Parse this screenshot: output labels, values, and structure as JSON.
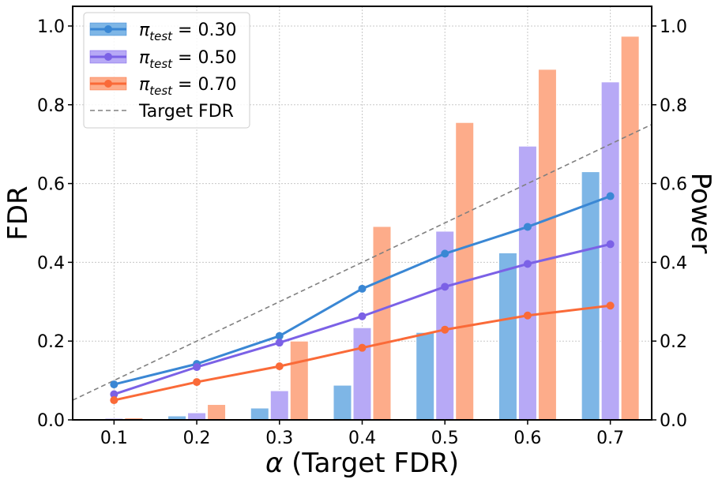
{
  "chart_data": {
    "type": "bar+line",
    "title": "",
    "xlabel_symbol": "α",
    "xlabel_text": " (Target FDR)",
    "ylabel_left": "FDR",
    "ylabel_right": "Power",
    "x": [
      0.1,
      0.2,
      0.3,
      0.4,
      0.5,
      0.6,
      0.7
    ],
    "x_tick_labels": [
      "0.1",
      "0.2",
      "0.3",
      "0.4",
      "0.5",
      "0.6",
      "0.7"
    ],
    "xlim": [
      0.05,
      0.75
    ],
    "ylim_left": [
      0,
      1.05
    ],
    "ylim_right": [
      0,
      1.05
    ],
    "y_ticks": [
      0.0,
      0.2,
      0.4,
      0.6,
      0.8,
      1.0
    ],
    "y_tick_labels": [
      "0.0",
      "0.2",
      "0.4",
      "0.6",
      "0.8",
      "1.0"
    ],
    "grid": true,
    "legend_position": "top-left",
    "series": [
      {
        "name_symbol": "π",
        "name_sub": "test",
        "name_value": " = 0.30",
        "color": "#3a87d4",
        "bar_color": "#7eb6e6",
        "fdr": [
          0.09,
          0.142,
          0.213,
          0.333,
          0.422,
          0.49,
          0.568
        ],
        "power": [
          0.003,
          0.01,
          0.03,
          0.088,
          0.222,
          0.424,
          0.63
        ]
      },
      {
        "name_symbol": "π",
        "name_sub": "test",
        "name_value": " = 0.50",
        "color": "#7b61e6",
        "bar_color": "#b7a9f6",
        "fdr": [
          0.065,
          0.134,
          0.196,
          0.263,
          0.338,
          0.396,
          0.446
        ],
        "power": [
          0.004,
          0.018,
          0.074,
          0.234,
          0.479,
          0.695,
          0.858
        ]
      },
      {
        "name_symbol": "π",
        "name_sub": "test",
        "name_value": " = 0.70",
        "color": "#fa6a38",
        "bar_color": "#fdac8a",
        "fdr": [
          0.05,
          0.096,
          0.136,
          0.183,
          0.229,
          0.265,
          0.29
        ],
        "power": [
          0.005,
          0.039,
          0.2,
          0.491,
          0.755,
          0.89,
          0.974
        ]
      }
    ],
    "target_line": {
      "label": "Target FDR",
      "color": "#808080",
      "style": "dashed"
    }
  }
}
